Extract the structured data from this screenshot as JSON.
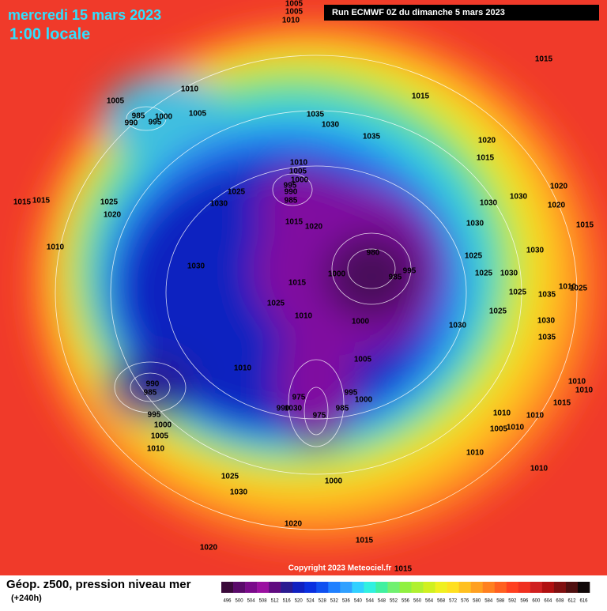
{
  "header": {
    "date": "mercredi 15 mars 2023",
    "time": "1:00 locale",
    "run": "Run ECMWF 0Z du dimanche 5 mars 2023"
  },
  "isobar_labels": [
    "1005",
    "1005",
    "1010",
    "1015",
    "1010",
    "1005",
    "985",
    "1000",
    "990",
    "995",
    "1005",
    "1035",
    "1030",
    "1015",
    "1035",
    "1020",
    "1015",
    "1010",
    "1005",
    "1000",
    "995",
    "990",
    "985",
    "1025",
    "1030",
    "1015",
    "1015",
    "1025",
    "1020",
    "1010",
    "1015",
    "1020",
    "1030",
    "1020",
    "1030",
    "1020",
    "1030",
    "1015",
    "980",
    "1025",
    "1030",
    "1000",
    "985",
    "995",
    "1030",
    "1015",
    "1025",
    "1025",
    "1030",
    "1025",
    "1035",
    "1025",
    "1010",
    "1000",
    "1030",
    "1030",
    "1035",
    "1005",
    "1010",
    "990",
    "985",
    "975",
    "995",
    "1000",
    "990",
    "1030",
    "975",
    "985",
    "995",
    "1000",
    "1005",
    "1010",
    "1010",
    "1010",
    "1015",
    "1010",
    "1010",
    "1005",
    "1010",
    "1010",
    "1010",
    "1025",
    "1030",
    "1000",
    "1020",
    "1015",
    "1020",
    "1015",
    "1010",
    "1025"
  ],
  "footer": {
    "title": "Géop. z500, pression niveau mer",
    "lead": "(+240h)",
    "copyright": "Copyright 2023 Meteociel.fr"
  },
  "colorbar": {
    "ticks": [
      496,
      500,
      504,
      508,
      512,
      516,
      520,
      524,
      528,
      532,
      536,
      540,
      544,
      548,
      552,
      556,
      560,
      564,
      568,
      572,
      576,
      580,
      584,
      588,
      592,
      596,
      600,
      604,
      608,
      612,
      616
    ],
    "colors": [
      "#3a0a3a",
      "#5a0a6a",
      "#7a0a8a",
      "#9a10a0",
      "#600a80",
      "#2a1a90",
      "#1020c0",
      "#0a30e0",
      "#1050f0",
      "#2080ff",
      "#30a0ff",
      "#30d0ff",
      "#30f0e0",
      "#40f0a0",
      "#70f070",
      "#90f040",
      "#b0f030",
      "#d0f020",
      "#f0f020",
      "#ffe020",
      "#ffc020",
      "#ffa020",
      "#ff8020",
      "#ff6020",
      "#ff4020",
      "#f03020",
      "#d02020",
      "#b01010",
      "#801010",
      "#501010",
      "#100808"
    ]
  }
}
